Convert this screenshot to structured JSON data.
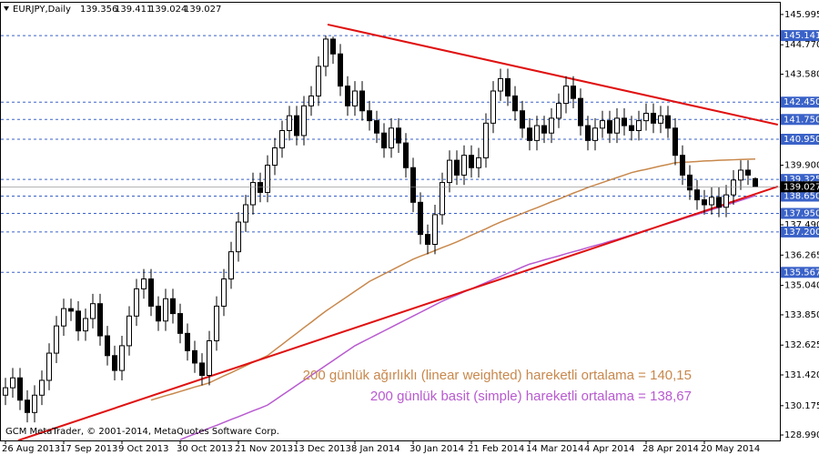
{
  "chart_data": {
    "type": "candlestick",
    "symbol": "EURJPY,Daily",
    "footer": "GCM MetaTrader, © 2001-2014, MetaQuotes Software Corp.",
    "annotations": [
      {
        "text": "200 günlük ağırlıklı (linear weighted) hareketli ortalama =  140,15",
        "color": "#c8884c"
      },
      {
        "text": "200 günlük basit (simple) hareketli ortalama = 138,67",
        "color": "#b85ad0"
      }
    ],
    "categories": [
      "26 Aug 2013",
      null,
      null,
      null,
      null,
      null,
      null,
      null,
      "17 Sep 2013",
      null,
      null,
      null,
      null,
      null,
      null,
      null,
      "9 Oct 2013",
      null,
      null,
      null,
      null,
      null,
      null,
      null,
      "30 Oct 2013",
      null,
      null,
      null,
      null,
      null,
      null,
      null,
      "21 Nov 2013",
      null,
      null,
      null,
      null,
      null,
      null,
      null,
      "13 Dec 2013",
      null,
      null,
      null,
      null,
      null,
      null,
      null,
      "8 Jan 2014",
      null,
      null,
      null,
      null,
      null,
      null,
      null,
      "30 Jan 2014",
      null,
      null,
      null,
      null,
      null,
      null,
      null,
      "21 Feb 2014",
      null,
      null,
      null,
      null,
      null,
      null,
      null,
      "14 Mar 2014",
      null,
      null,
      null,
      null,
      null,
      null,
      null,
      "4 Apr 2014",
      null,
      null,
      null,
      null,
      null,
      null,
      null,
      "28 Apr 2014",
      null,
      null,
      null,
      null,
      null,
      null,
      null,
      "20 May 2014",
      null,
      null,
      null,
      null,
      null,
      null,
      null
    ],
    "open": [
      130.6,
      130.9,
      131.3,
      130.4,
      129.9,
      130.6,
      131.2,
      132.3,
      133.4,
      134.1,
      134.0,
      133.2,
      133.7,
      134.3,
      133.0,
      132.2,
      131.6,
      132.6,
      133.8,
      134.9,
      135.3,
      134.2,
      133.6,
      134.5,
      133.9,
      133.1,
      132.4,
      131.9,
      131.4,
      132.8,
      134.2,
      135.3,
      136.4,
      137.6,
      138.3,
      139.2,
      138.8,
      139.9,
      140.6,
      141.3,
      141.9,
      141.1,
      142.3,
      142.7,
      143.9,
      145.0,
      144.4,
      143.1,
      142.3,
      142.9,
      142.1,
      141.7,
      141.2,
      140.6,
      141.4,
      140.8,
      139.8,
      138.4,
      137.1,
      136.7,
      137.9,
      139.2,
      140.1,
      139.5,
      140.3,
      139.8,
      140.2,
      141.6,
      142.9,
      143.4,
      142.7,
      142.1,
      141.4,
      140.9,
      141.5,
      141.2,
      141.8,
      142.4,
      143.1,
      142.6,
      141.5,
      140.9,
      141.4,
      141.7,
      141.2,
      141.8,
      141.5,
      141.3,
      141.7,
      142.0,
      141.6,
      141.9,
      141.4,
      140.3,
      139.5,
      138.9,
      138.5,
      138.3,
      138.6,
      138.2,
      138.7,
      139.3,
      139.7,
      139.356
    ],
    "high": [
      131.3,
      131.7,
      131.7,
      130.8,
      131.0,
      131.6,
      132.7,
      133.8,
      134.5,
      134.5,
      134.4,
      134.1,
      134.7,
      134.7,
      133.4,
      132.6,
      133.0,
      134.2,
      135.3,
      135.7,
      135.7,
      134.6,
      134.9,
      134.9,
      134.3,
      133.5,
      132.8,
      132.3,
      133.2,
      134.6,
      135.7,
      136.8,
      138.0,
      138.7,
      139.6,
      139.6,
      140.3,
      141.0,
      141.7,
      142.3,
      142.3,
      142.7,
      143.1,
      144.3,
      145.14,
      145.1,
      144.8,
      143.5,
      143.3,
      143.3,
      142.5,
      142.1,
      141.6,
      141.8,
      141.8,
      141.2,
      140.2,
      138.8,
      137.5,
      138.3,
      139.6,
      140.5,
      140.5,
      140.7,
      140.7,
      140.6,
      142.0,
      143.3,
      143.8,
      143.8,
      143.1,
      142.5,
      141.8,
      141.9,
      141.9,
      142.2,
      142.8,
      143.5,
      143.5,
      143.0,
      141.9,
      141.8,
      142.1,
      142.1,
      142.2,
      142.2,
      141.9,
      142.1,
      142.4,
      142.4,
      142.3,
      142.3,
      141.8,
      140.7,
      139.9,
      139.3,
      138.9,
      139.0,
      139.0,
      139.1,
      139.7,
      140.1,
      140.1,
      139.411
    ],
    "low": [
      130.2,
      130.5,
      130.0,
      129.5,
      129.5,
      130.2,
      130.8,
      131.9,
      133.0,
      133.6,
      132.8,
      132.8,
      133.3,
      132.6,
      131.8,
      131.2,
      131.2,
      132.2,
      133.4,
      134.5,
      133.8,
      133.2,
      133.2,
      133.5,
      132.7,
      132.0,
      131.5,
      131.0,
      131.0,
      132.4,
      133.8,
      134.9,
      136.0,
      137.2,
      137.9,
      138.4,
      138.4,
      139.5,
      140.2,
      140.9,
      140.7,
      140.7,
      141.9,
      142.3,
      143.5,
      144.0,
      142.7,
      141.9,
      141.9,
      141.7,
      141.3,
      140.8,
      140.2,
      140.2,
      140.4,
      139.4,
      138.0,
      136.7,
      136.3,
      136.3,
      137.5,
      138.8,
      139.1,
      139.1,
      139.4,
      139.4,
      139.8,
      141.2,
      142.5,
      142.3,
      141.7,
      141.0,
      140.5,
      140.5,
      140.8,
      140.8,
      141.4,
      142.0,
      142.2,
      141.1,
      140.5,
      140.5,
      141.0,
      140.8,
      140.8,
      141.1,
      140.9,
      140.9,
      141.3,
      141.2,
      141.2,
      141.0,
      139.9,
      139.1,
      138.5,
      138.1,
      137.9,
      137.9,
      137.8,
      137.8,
      138.3,
      138.9,
      139.1,
      139.024
    ],
    "close": [
      130.9,
      131.3,
      130.4,
      129.9,
      130.6,
      131.2,
      132.3,
      133.4,
      134.1,
      134.0,
      133.2,
      133.7,
      134.3,
      133.0,
      132.2,
      131.6,
      132.6,
      133.8,
      134.9,
      135.3,
      134.2,
      133.6,
      134.5,
      133.9,
      133.1,
      132.4,
      131.9,
      131.4,
      132.8,
      134.2,
      135.3,
      136.4,
      137.6,
      138.3,
      139.2,
      138.8,
      139.9,
      140.6,
      141.3,
      141.9,
      141.1,
      142.3,
      142.7,
      143.9,
      145.0,
      144.4,
      143.1,
      142.3,
      142.9,
      142.1,
      141.7,
      141.2,
      140.6,
      141.4,
      140.8,
      139.8,
      138.4,
      137.1,
      136.7,
      137.9,
      139.2,
      140.1,
      139.5,
      140.3,
      139.8,
      140.2,
      141.6,
      142.9,
      143.4,
      142.7,
      142.1,
      141.4,
      140.9,
      141.5,
      141.2,
      141.8,
      142.4,
      143.1,
      142.6,
      141.5,
      140.9,
      141.4,
      141.7,
      141.2,
      141.8,
      141.5,
      141.3,
      141.7,
      142.0,
      141.6,
      141.9,
      141.4,
      140.3,
      139.5,
      138.9,
      138.5,
      138.3,
      138.6,
      138.2,
      138.7,
      139.3,
      139.7,
      139.5,
      139.027
    ],
    "series": [
      {
        "color": "#c8884c",
        "values": [
          null,
          null,
          null,
          null,
          null,
          null,
          null,
          null,
          null,
          null,
          null,
          null,
          null,
          null,
          null,
          null,
          null,
          null,
          null,
          null,
          130.4,
          130.49,
          130.58,
          130.66,
          130.75,
          130.84,
          130.93,
          131.01,
          131.1,
          131.24,
          131.38,
          131.51,
          131.65,
          131.79,
          131.93,
          132.06,
          132.2,
          132.43,
          132.65,
          132.88,
          133.1,
          133.33,
          133.55,
          133.78,
          134.0,
          134.2,
          134.4,
          134.6,
          134.8,
          135.0,
          135.2,
          135.35,
          135.5,
          135.65,
          135.8,
          135.95,
          136.1,
          136.22,
          136.33,
          136.45,
          136.57,
          136.68,
          136.8,
          136.93,
          137.07,
          137.2,
          137.33,
          137.47,
          137.6,
          137.72,
          137.83,
          137.95,
          138.07,
          138.18,
          138.3,
          138.42,
          138.53,
          138.65,
          138.77,
          138.88,
          139.0,
          139.1,
          139.2,
          139.3,
          139.4,
          139.5,
          139.6,
          139.67,
          139.73,
          139.8,
          139.87,
          139.93,
          140.0,
          140.02,
          140.03,
          140.05,
          140.07,
          140.08,
          140.1,
          140.11,
          140.12,
          140.13,
          140.14,
          140.15
        ]
      },
      {
        "color": "#b85ad0",
        "values": [
          null,
          null,
          null,
          null,
          null,
          null,
          null,
          null,
          null,
          null,
          null,
          null,
          null,
          null,
          null,
          null,
          null,
          null,
          null,
          null,
          null,
          null,
          null,
          null,
          128.8,
          128.92,
          129.03,
          129.15,
          129.27,
          129.38,
          129.5,
          129.62,
          129.73,
          129.85,
          129.97,
          130.08,
          130.2,
          130.4,
          130.6,
          130.8,
          131.0,
          131.2,
          131.4,
          131.6,
          131.8,
          132.0,
          132.2,
          132.4,
          132.6,
          132.75,
          132.9,
          133.05,
          133.2,
          133.35,
          133.5,
          133.65,
          133.8,
          133.95,
          134.1,
          134.25,
          134.4,
          134.53,
          134.65,
          134.78,
          134.9,
          135.03,
          135.15,
          135.28,
          135.4,
          135.53,
          135.65,
          135.78,
          135.9,
          135.98,
          136.07,
          136.15,
          136.23,
          136.32,
          136.4,
          136.48,
          136.57,
          136.65,
          136.73,
          136.82,
          136.9,
          136.99,
          137.08,
          137.18,
          137.27,
          137.36,
          137.45,
          137.54,
          137.63,
          137.73,
          137.82,
          137.91,
          138.0,
          138.1,
          138.19,
          138.29,
          138.38,
          138.48,
          138.57,
          138.67
        ]
      }
    ],
    "trendlines": [
      {
        "color": "#e01010",
        "from": [
          44.25,
          145.59
        ],
        "to": [
          106.1,
          141.54
        ]
      },
      {
        "color": "#e01010",
        "from": [
          1.75,
          128.77
        ],
        "to": [
          106.1,
          139.04
        ]
      }
    ],
    "levels": [
      145.141,
      {
        "value": 142.45,
        "label": "142.450"
      },
      {
        "value": 141.75,
        "label": "141.750"
      },
      {
        "value": 140.95,
        "label": "140.950"
      },
      139.325,
      {
        "value": 138.65,
        "label": "138.650"
      },
      {
        "value": 137.95,
        "label": "137.950"
      },
      {
        "value": 137.2,
        "label": "137.200"
      },
      135.567
    ],
    "ylim": [
      128.77,
      146.47
    ],
    "yticks": [
      145.995,
      {
        "value": 144.77,
        "label": "144.770"
      },
      {
        "value": 143.58,
        "label": "143.580"
      },
      {
        "value": 139.9,
        "label": "139.900"
      },
      {
        "value": 137.49,
        "label": "137.490"
      },
      136.265,
      {
        "value": 135.04,
        "label": "135.040"
      },
      {
        "value": 133.85,
        "label": "133.850"
      },
      132.625,
      {
        "value": 131.42,
        "label": "131.420"
      },
      130.175,
      {
        "value": 128.99,
        "label": "128.990"
      }
    ],
    "up_color": "#ffffff",
    "down_color": "#000000",
    "level_color": "#3a62c8"
  }
}
